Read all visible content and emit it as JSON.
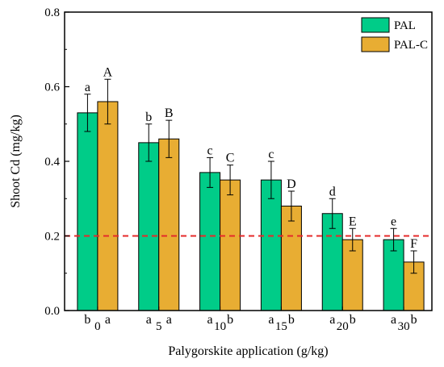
{
  "chart_data": {
    "type": "bar",
    "xlabel": "Palygorskite application (g/kg)",
    "ylabel": "Shoot Cd (mg/kg)",
    "categories": [
      "0",
      "5",
      "10",
      "15",
      "20",
      "30"
    ],
    "ylim": [
      0,
      0.8
    ],
    "yticks": [
      "0.0",
      "0.2",
      "0.4",
      "0.6",
      "0.8"
    ],
    "legend": {
      "position": "top-right"
    },
    "series": [
      {
        "name": "PAL",
        "color": "#00CC88",
        "values": [
          0.53,
          0.45,
          0.37,
          0.35,
          0.26,
          0.19
        ],
        "errors": [
          0.05,
          0.05,
          0.04,
          0.05,
          0.04,
          0.03
        ],
        "letters": [
          "a",
          "b",
          "c",
          "c",
          "d",
          "e"
        ]
      },
      {
        "name": "PAL-C",
        "color": "#E8AD33",
        "values": [
          0.56,
          0.46,
          0.35,
          0.28,
          0.19,
          0.13
        ],
        "errors": [
          0.06,
          0.05,
          0.04,
          0.04,
          0.03,
          0.03
        ],
        "letters": [
          "A",
          "B",
          "C",
          "D",
          "E",
          "F"
        ]
      }
    ],
    "bottom_labels": [
      [
        "b",
        "a"
      ],
      [
        "a",
        "a"
      ],
      [
        "a",
        "b"
      ],
      [
        "a",
        "b"
      ],
      [
        "a",
        "b"
      ],
      [
        "a",
        "b"
      ]
    ],
    "threshold": {
      "value": 0.2,
      "color": "#E52A2A",
      "style": "dashed"
    }
  }
}
